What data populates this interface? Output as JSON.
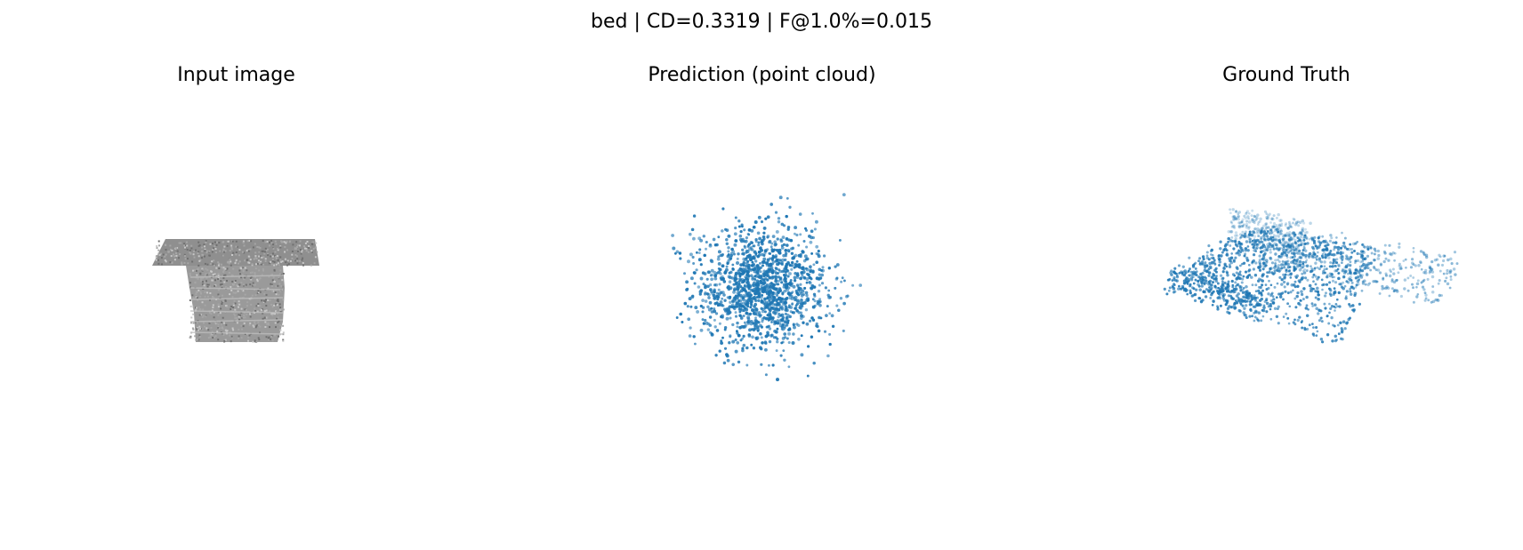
{
  "figure": {
    "title": "bed | CD=0.3319 | F@1.0%=0.015"
  },
  "chart_data": [
    {
      "type": "image",
      "title": "Input image",
      "description_color": "#8c8c8c"
    },
    {
      "type": "scatter",
      "title": "Prediction (point cloud)",
      "color": "#1f77b4",
      "axis": "off",
      "distribution": "isotropic-gaussian",
      "n_points": 1400
    },
    {
      "type": "scatter",
      "title": "Ground Truth",
      "color": "#1f77b4",
      "axis": "off",
      "shape": "bed",
      "n_points": 1800
    }
  ]
}
